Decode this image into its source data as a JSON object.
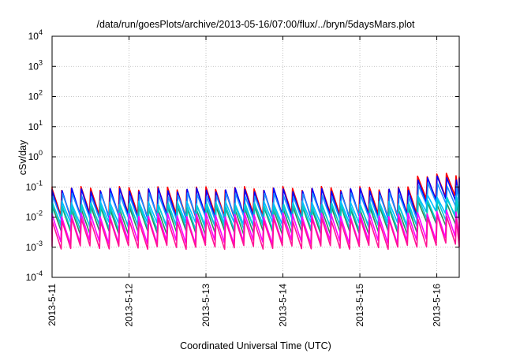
{
  "chart_data": {
    "type": "line",
    "title": "/data/run/goesPlots/archive/2013-05-16/07:00/flux/../bryn/5daysMars.plot",
    "xlabel": "Coordinated Universal Time (UTC)",
    "ylabel": "cSv/day",
    "x_ticks": [
      "2013-5-11",
      "2013-5-12",
      "2013-5-13",
      "2013-5-14",
      "2013-5-15",
      "2013-5-16"
    ],
    "xlim": [
      "2013-05-11T00:00",
      "2013-05-16T07:00"
    ],
    "y_scale": "log",
    "ylim": [
      0.0001,
      10000
    ],
    "y_ticks": [
      {
        "base": "10",
        "exp": "-4"
      },
      {
        "base": "10",
        "exp": "-3"
      },
      {
        "base": "10",
        "exp": "-2"
      },
      {
        "base": "10",
        "exp": "-1"
      },
      {
        "base": "10",
        "exp": "0"
      },
      {
        "base": "10",
        "exp": "1"
      },
      {
        "base": "10",
        "exp": "2"
      },
      {
        "base": "10",
        "exp": "3"
      },
      {
        "base": "10",
        "exp": "4"
      }
    ],
    "grid": true,
    "pattern": "sawtooth",
    "sawtooth_period_hours": 3,
    "event_start": "2013-05-15T16:00",
    "series": [
      {
        "color": "#ff0000",
        "peak": 0.09,
        "trough": 0.012,
        "event_peak": 0.25,
        "event_trough": 0.045
      },
      {
        "color": "#0000ff",
        "peak": 0.08,
        "trough": 0.01,
        "event_peak": 0.2,
        "event_trough": 0.035
      },
      {
        "color": "#1e90ff",
        "peak": 0.055,
        "trough": 0.009,
        "event_peak": 0.12,
        "event_trough": 0.025
      },
      {
        "color": "#00bfff",
        "peak": 0.03,
        "trough": 0.006,
        "event_peak": 0.05,
        "event_trough": 0.014
      },
      {
        "color": "#2e8b57",
        "peak": 0.02,
        "trough": 0.003,
        "event_peak": 0.03,
        "event_trough": 0.006
      },
      {
        "color": "#00ced1",
        "peak": 0.025,
        "trough": 0.004,
        "event_peak": 0.04,
        "event_trough": 0.008
      },
      {
        "color": "#ff00ff",
        "peak": 0.012,
        "trough": 0.0015,
        "event_peak": 0.015,
        "event_trough": 0.002
      },
      {
        "color": "#ff1493",
        "peak": 0.008,
        "trough": 0.001,
        "event_peak": 0.01,
        "event_trough": 0.0012
      }
    ]
  }
}
